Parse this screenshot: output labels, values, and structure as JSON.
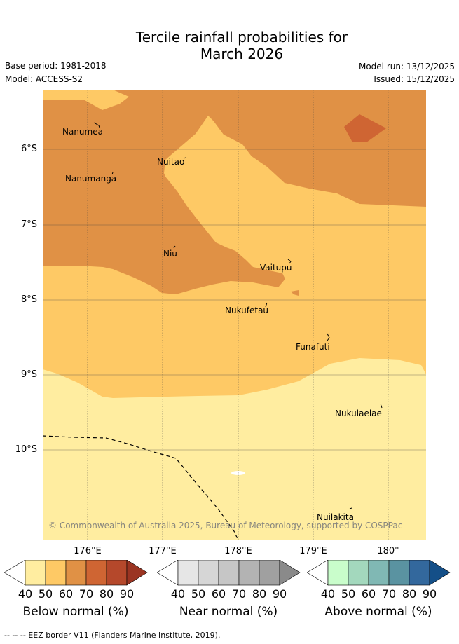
{
  "title_line1": "Tercile rainfall probabilities for",
  "title_line2": "March 2026",
  "base_period": "Base period: 1981-2018",
  "model": "Model: ACCESS-S2",
  "model_run": "Model run: 13/12/2025",
  "issued": "Issued: 15/12/2025",
  "lat_labels": [
    "6°S",
    "7°S",
    "8°S",
    "9°S",
    "10°S"
  ],
  "lon_labels": [
    "176°E",
    "177°E",
    "178°E",
    "179°E",
    "180°"
  ],
  "places": {
    "nanumea": "Nanumea",
    "nanumanga": "Nanumanga",
    "nuitao": "Nuitao",
    "niu": "Niu",
    "vaitupu": "Vaitupu",
    "nukufetau": "Nukufetau",
    "funafuti": "Funafuti",
    "nukulaelae": "Nukulaelae",
    "nuilakita": "Nuilakita"
  },
  "copyright": "© Commonwealth of Australia 2025, Bureau of Meteorology, supported by COSPPac",
  "colorbar_ticks": [
    "40",
    "50",
    "60",
    "70",
    "80",
    "90"
  ],
  "colorbars": {
    "below": {
      "title": "Below normal (%)",
      "colors": [
        "#ffffff",
        "#ffeda0",
        "#fec965",
        "#e09145",
        "#cf6533",
        "#b5482b",
        "#9b3422"
      ]
    },
    "near": {
      "title": "Near normal (%)",
      "colors": [
        "#ffffff",
        "#e6e6e6",
        "#d6d6d6",
        "#c6c6c6",
        "#b3b3b3",
        "#a0a0a0",
        "#8a8a8a"
      ]
    },
    "above": {
      "title": "Above normal (%)",
      "colors": [
        "#ffffff",
        "#c9fdcb",
        "#a3d8bd",
        "#80b8b4",
        "#5a93a1",
        "#33689d",
        "#144f88"
      ]
    }
  },
  "footer": "--  --  -- EEZ border V11 (Flanders Marine Institute, 2019)."
}
